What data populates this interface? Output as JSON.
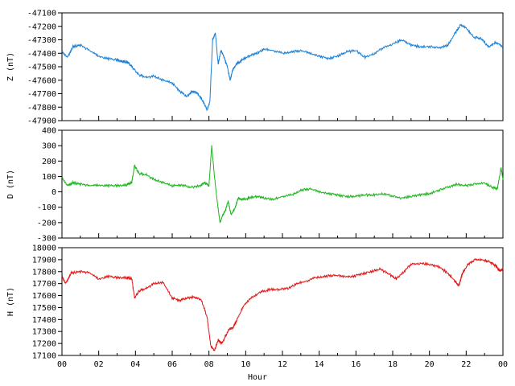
{
  "chart_data": [
    {
      "type": "line",
      "ylabel": "Z (nT)",
      "ylim": [
        -47900,
        -47100
      ],
      "yticks": [
        -47100,
        -47200,
        -47300,
        -47400,
        -47500,
        -47600,
        -47700,
        -47800,
        -47900
      ],
      "xlim": [
        0,
        24
      ],
      "series": [
        {
          "color": "#1a7fd4",
          "x": [
            0,
            0.3,
            0.6,
            1.0,
            1.5,
            2.0,
            2.5,
            3.0,
            3.3,
            3.6,
            3.8,
            4.2,
            4.6,
            5.0,
            5.5,
            6.0,
            6.4,
            6.8,
            7.1,
            7.4,
            7.7,
            7.9,
            8.05,
            8.2,
            8.35,
            8.5,
            8.65,
            8.8,
            9.0,
            9.15,
            9.3,
            9.5,
            9.8,
            10.2,
            10.6,
            11.0,
            11.5,
            12.0,
            12.5,
            13.0,
            13.5,
            14.0,
            14.5,
            15.0,
            15.5,
            16.0,
            16.5,
            17.0,
            17.5,
            18.0,
            18.5,
            19.0,
            19.5,
            20.0,
            20.5,
            21.0,
            21.4,
            21.7,
            22.0,
            22.4,
            22.8,
            23.2,
            23.6,
            24.0
          ],
          "y": [
            -47390,
            -47430,
            -47350,
            -47340,
            -47380,
            -47420,
            -47440,
            -47450,
            -47460,
            -47470,
            -47500,
            -47560,
            -47580,
            -47570,
            -47600,
            -47620,
            -47680,
            -47720,
            -47680,
            -47700,
            -47760,
            -47820,
            -47760,
            -47300,
            -47250,
            -47480,
            -47380,
            -47420,
            -47500,
            -47600,
            -47520,
            -47480,
            -47450,
            -47420,
            -47400,
            -47370,
            -47380,
            -47400,
            -47390,
            -47380,
            -47400,
            -47420,
            -47440,
            -47420,
            -47390,
            -47380,
            -47430,
            -47400,
            -47360,
            -47330,
            -47300,
            -47340,
            -47350,
            -47350,
            -47360,
            -47340,
            -47250,
            -47190,
            -47210,
            -47280,
            -47290,
            -47350,
            -47320,
            -47350
          ]
        }
      ]
    },
    {
      "type": "line",
      "ylabel": "D (nT)",
      "ylim": [
        -300,
        400
      ],
      "yticks": [
        400,
        300,
        200,
        100,
        0,
        -100,
        -200,
        -300
      ],
      "xlim": [
        0,
        24
      ],
      "series": [
        {
          "color": "#1fb41f",
          "x": [
            0,
            0.3,
            0.6,
            1.0,
            1.5,
            2.0,
            2.5,
            3.0,
            3.5,
            3.8,
            3.95,
            4.2,
            4.6,
            5.0,
            5.5,
            6.0,
            6.5,
            7.0,
            7.5,
            7.8,
            8.0,
            8.15,
            8.3,
            8.45,
            8.6,
            8.75,
            8.9,
            9.05,
            9.2,
            9.4,
            9.6,
            9.8,
            10.2,
            10.6,
            11.0,
            11.5,
            12.0,
            12.5,
            13.0,
            13.5,
            14.0,
            14.5,
            15.0,
            15.5,
            16.0,
            16.5,
            17.0,
            17.5,
            18.0,
            18.5,
            19.0,
            19.5,
            20.0,
            20.5,
            21.0,
            21.5,
            22.0,
            22.5,
            23.0,
            23.4,
            23.7,
            23.9,
            24.0
          ],
          "y": [
            90,
            40,
            60,
            50,
            40,
            45,
            40,
            40,
            45,
            60,
            170,
            120,
            110,
            80,
            60,
            40,
            45,
            30,
            40,
            60,
            40,
            300,
            100,
            -60,
            -200,
            -150,
            -120,
            -60,
            -150,
            -110,
            -40,
            -50,
            -40,
            -30,
            -40,
            -50,
            -30,
            -20,
            10,
            20,
            0,
            -10,
            -20,
            -30,
            -30,
            -20,
            -20,
            -10,
            -30,
            -40,
            -30,
            -20,
            -10,
            10,
            30,
            50,
            40,
            50,
            60,
            30,
            20,
            160,
            80
          ]
        }
      ]
    },
    {
      "type": "line",
      "ylabel": "H (nT)",
      "xlabel": "Hour",
      "ylim": [
        17100,
        18000
      ],
      "yticks": [
        18000,
        17900,
        17800,
        17700,
        17600,
        17500,
        17400,
        17300,
        17200,
        17100
      ],
      "xlim": [
        0,
        24
      ],
      "xticks": [
        "00",
        "02",
        "04",
        "06",
        "08",
        "10",
        "12",
        "14",
        "16",
        "18",
        "20",
        "22",
        "00"
      ],
      "series": [
        {
          "color": "#e01515",
          "x": [
            0,
            0.2,
            0.5,
            1.0,
            1.5,
            2.0,
            2.5,
            3.0,
            3.5,
            3.8,
            3.95,
            4.2,
            4.6,
            5.0,
            5.5,
            6.0,
            6.4,
            6.8,
            7.2,
            7.6,
            7.9,
            8.1,
            8.3,
            8.5,
            8.7,
            8.9,
            9.1,
            9.3,
            9.6,
            9.9,
            10.3,
            10.8,
            11.3,
            11.8,
            12.3,
            12.8,
            13.3,
            13.8,
            14.3,
            14.8,
            15.3,
            15.8,
            16.3,
            16.8,
            17.3,
            17.8,
            18.2,
            18.6,
            19.0,
            19.5,
            20.0,
            20.5,
            21.0,
            21.4,
            21.6,
            21.8,
            22.1,
            22.5,
            22.9,
            23.3,
            23.6,
            23.8,
            24.0
          ],
          "y": [
            17760,
            17700,
            17790,
            17800,
            17790,
            17740,
            17760,
            17750,
            17750,
            17740,
            17580,
            17640,
            17660,
            17700,
            17710,
            17580,
            17560,
            17580,
            17590,
            17560,
            17420,
            17180,
            17140,
            17230,
            17200,
            17260,
            17320,
            17330,
            17420,
            17520,
            17580,
            17630,
            17650,
            17650,
            17660,
            17700,
            17720,
            17750,
            17760,
            17770,
            17760,
            17760,
            17780,
            17800,
            17820,
            17780,
            17740,
            17800,
            17860,
            17870,
            17860,
            17840,
            17790,
            17720,
            17680,
            17790,
            17860,
            17900,
            17900,
            17880,
            17850,
            17810,
            17820
          ]
        }
      ]
    }
  ]
}
